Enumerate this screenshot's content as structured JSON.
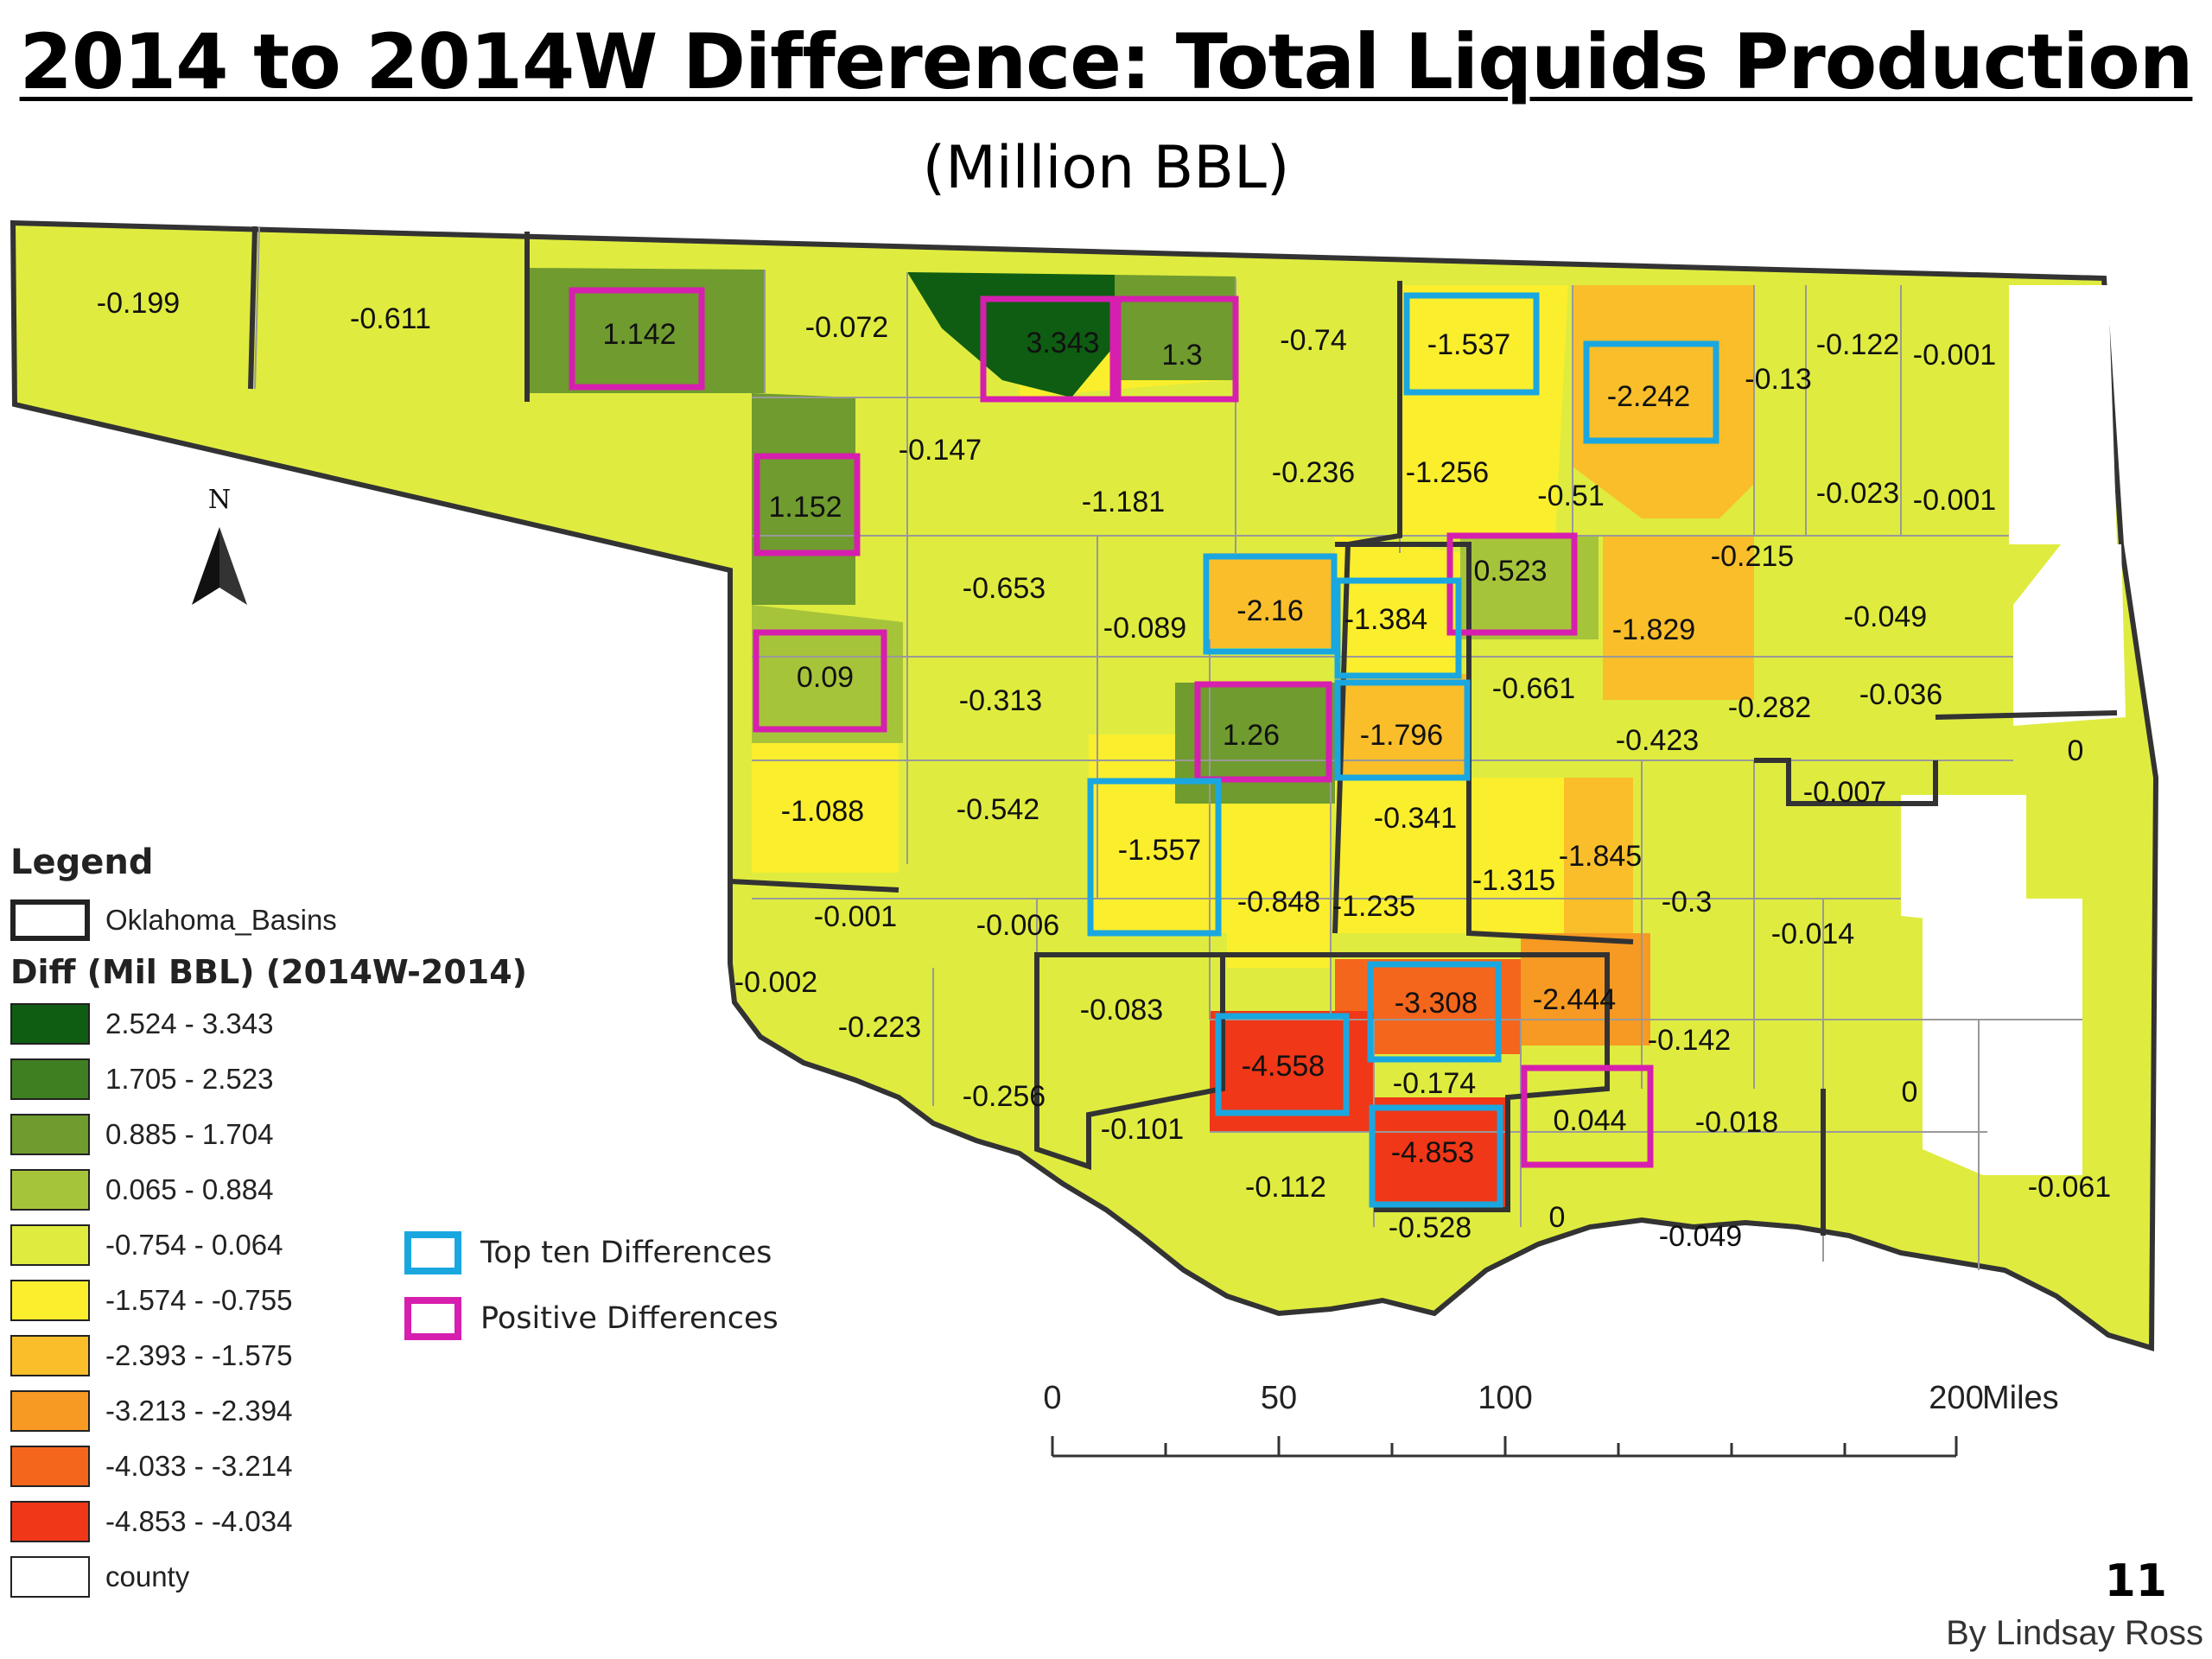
{
  "title": "2014 to 2014W Difference: Total Liquids Production",
  "subtitle": "(Million BBL)",
  "legend": {
    "title": "Legend",
    "basins_label": "Oklahoma_Basins",
    "diff_title": "Diff (Mil BBL) (2014W-2014)",
    "classes": [
      {
        "label": "2.524 - 3.343",
        "color": "#0e5d12"
      },
      {
        "label": "1.705 - 2.523",
        "color": "#3f7f21"
      },
      {
        "label": "0.885 - 1.704",
        "color": "#6f9b2f"
      },
      {
        "label": "0.065 - 0.884",
        "color": "#a6c43a"
      },
      {
        "label": "-0.754 - 0.064",
        "color": "#dfec3f"
      },
      {
        "label": "-1.574 - -0.755",
        "color": "#fbee2d"
      },
      {
        "label": "-2.393 - -1.575",
        "color": "#f9be2a"
      },
      {
        "label": "-3.213 - -2.394",
        "color": "#f79a23"
      },
      {
        "label": "-4.033 - -3.214",
        "color": "#f5661d"
      },
      {
        "label": "-4.853 - -4.034",
        "color": "#f03718"
      }
    ],
    "county_label": "county",
    "county_color": "#ffffff"
  },
  "highlight_legend": {
    "top_ten_label": "Top ten Differences",
    "top_ten_color": "#1aa7e0",
    "positive_label": "Positive Differences",
    "positive_color": "#d61fae"
  },
  "scale_bar": {
    "ticks": [
      "0",
      "50",
      "100",
      "200"
    ],
    "unit": "Miles"
  },
  "county_values": [
    "-0.199",
    "-0.611",
    "1.142",
    "-0.072",
    "3.343",
    "1.3",
    "-0.74",
    "-1.537",
    "-2.242",
    "-0.13",
    "-0.122",
    "-0.001",
    "-0.147",
    "1.152",
    "-1.181",
    "-0.236",
    "-1.256",
    "-0.51",
    "-0.023",
    "-0.001",
    "-0.653",
    "-0.089",
    "-2.16",
    "-1.384",
    "0.523",
    "-1.829",
    "-0.215",
    "-0.049",
    "0.09",
    "-0.313",
    "1.26",
    "-1.796",
    "-0.661",
    "-0.423",
    "-0.282",
    "-0.036",
    "0",
    "-1.088",
    "-0.542",
    "-1.557",
    "-0.341",
    "-1.845",
    "-0.007",
    "-0.001",
    "-0.006",
    "-0.848",
    "-1.235",
    "-1.315",
    "-0.3",
    "-0.014",
    "-0.002",
    "-0.223",
    "-0.083",
    "-3.308",
    "-2.444",
    "-0.142",
    "-0.256",
    "-4.558",
    "-0.174",
    "-0.101",
    "0.044",
    "-0.018",
    "0",
    "-4.853",
    "-0.112",
    "-0.528",
    "0",
    "-0.049",
    "-0.061"
  ],
  "page_number": "11",
  "author": "By Lindsay Ross"
}
